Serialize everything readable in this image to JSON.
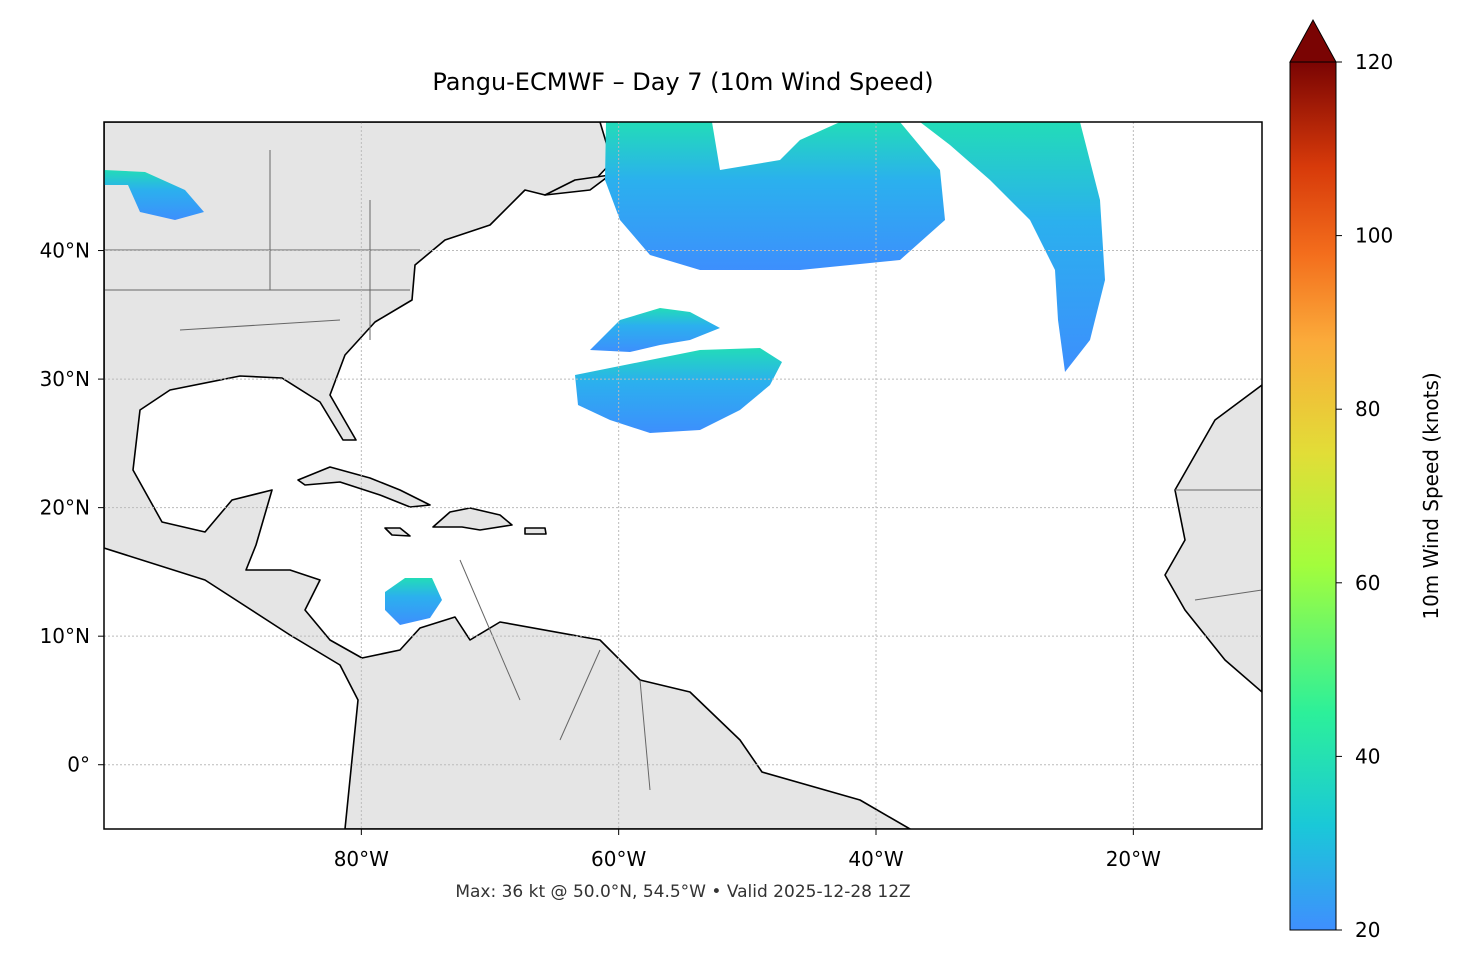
{
  "title": "Pangu-ECMWF – Day 7 (10m Wind Speed)",
  "map": {
    "xlim": [
      -100,
      -10
    ],
    "ylim": [
      -5,
      50
    ],
    "grid": true,
    "xticks": [
      {
        "value": -80,
        "label": "80°W"
      },
      {
        "value": -60,
        "label": "60°W"
      },
      {
        "value": -40,
        "label": "40°W"
      },
      {
        "value": -20,
        "label": "20°W"
      }
    ],
    "yticks": [
      {
        "value": 0,
        "label": "0°"
      },
      {
        "value": 10,
        "label": "10°N"
      },
      {
        "value": 20,
        "label": "20°N"
      },
      {
        "value": 30,
        "label": "30°N"
      },
      {
        "value": 40,
        "label": "40°N"
      }
    ]
  },
  "colorbar": {
    "label": "10m Wind Speed (knots)",
    "lim": [
      20,
      120
    ],
    "ticks": [
      20,
      40,
      60,
      80,
      100,
      120
    ]
  },
  "footer": "Max: 36 kt @ 50.0°N, 54.5°W • Valid 2025-12-28 12Z"
}
